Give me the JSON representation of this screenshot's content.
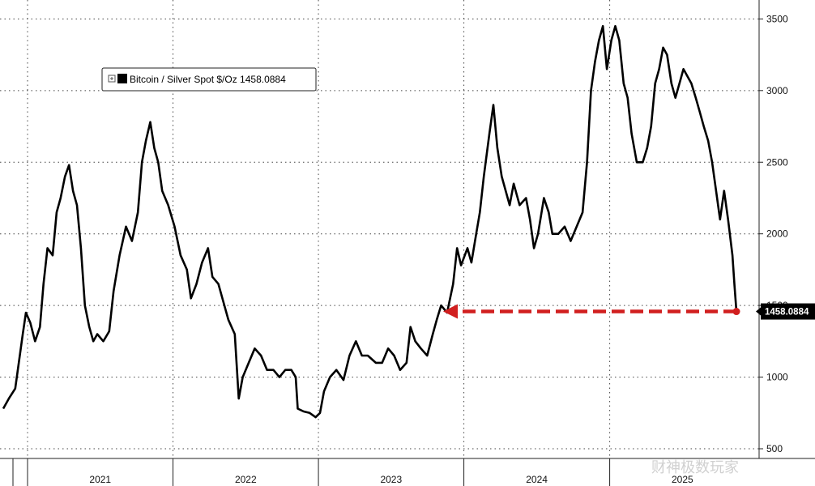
{
  "colors": {
    "line": "#000000",
    "accent": "#d11f1f",
    "last_bg": "#000000"
  },
  "watermark": "财神极数玩家",
  "chart_data": {
    "type": "line",
    "title": "",
    "xlabel": "",
    "ylabel": "",
    "ylim": [
      500,
      3700
    ],
    "y_ticks": [
      500,
      1000,
      1500,
      2000,
      2500,
      3000,
      3500
    ],
    "year_labels": [
      "2021",
      "2022",
      "2023",
      "2024",
      "2025"
    ],
    "x_range": [
      "2020-11-01",
      "2025-11-15"
    ],
    "year_bounds": [
      "2021-01-01",
      "2022-01-01",
      "2023-01-01",
      "2024-01-01",
      "2025-01-01"
    ],
    "legend": {
      "label": "Bitcoin / Silver Spot $/Oz",
      "value": "1458.0884",
      "placement": "top-left"
    },
    "last_value_label": "1458.0884",
    "series": [
      {
        "name": "Bitcoin / Silver Spot $/Oz",
        "points": [
          [
            "2020-11-01",
            780
          ],
          [
            "2020-11-15",
            850
          ],
          [
            "2020-12-01",
            920
          ],
          [
            "2020-12-10",
            1100
          ],
          [
            "2020-12-20",
            1300
          ],
          [
            "2020-12-28",
            1450
          ],
          [
            "2021-01-08",
            1380
          ],
          [
            "2021-01-20",
            1250
          ],
          [
            "2021-02-01",
            1350
          ],
          [
            "2021-02-10",
            1650
          ],
          [
            "2021-02-20",
            1900
          ],
          [
            "2021-03-05",
            1850
          ],
          [
            "2021-03-15",
            2150
          ],
          [
            "2021-03-25",
            2250
          ],
          [
            "2021-04-05",
            2400
          ],
          [
            "2021-04-15",
            2480
          ],
          [
            "2021-04-25",
            2300
          ],
          [
            "2021-05-05",
            2200
          ],
          [
            "2021-05-15",
            1900
          ],
          [
            "2021-05-25",
            1500
          ],
          [
            "2021-06-05",
            1350
          ],
          [
            "2021-06-15",
            1250
          ],
          [
            "2021-06-25",
            1300
          ],
          [
            "2021-07-10",
            1250
          ],
          [
            "2021-07-25",
            1320
          ],
          [
            "2021-08-05",
            1600
          ],
          [
            "2021-08-20",
            1850
          ],
          [
            "2021-09-05",
            2050
          ],
          [
            "2021-09-20",
            1950
          ],
          [
            "2021-10-05",
            2150
          ],
          [
            "2021-10-15",
            2500
          ],
          [
            "2021-10-25",
            2650
          ],
          [
            "2021-11-05",
            2780
          ],
          [
            "2021-11-15",
            2600
          ],
          [
            "2021-11-25",
            2500
          ],
          [
            "2021-12-05",
            2300
          ],
          [
            "2021-12-20",
            2200
          ],
          [
            "2022-01-05",
            2050
          ],
          [
            "2022-01-20",
            1850
          ],
          [
            "2022-02-05",
            1750
          ],
          [
            "2022-02-15",
            1550
          ],
          [
            "2022-03-01",
            1650
          ],
          [
            "2022-03-15",
            1800
          ],
          [
            "2022-03-30",
            1900
          ],
          [
            "2022-04-10",
            1700
          ],
          [
            "2022-04-25",
            1650
          ],
          [
            "2022-05-05",
            1550
          ],
          [
            "2022-05-20",
            1400
          ],
          [
            "2022-06-05",
            1300
          ],
          [
            "2022-06-15",
            850
          ],
          [
            "2022-06-25",
            1000
          ],
          [
            "2022-07-10",
            1100
          ],
          [
            "2022-07-25",
            1200
          ],
          [
            "2022-08-10",
            1150
          ],
          [
            "2022-08-25",
            1050
          ],
          [
            "2022-09-10",
            1050
          ],
          [
            "2022-09-25",
            1000
          ],
          [
            "2022-10-10",
            1050
          ],
          [
            "2022-10-25",
            1050
          ],
          [
            "2022-11-05",
            1000
          ],
          [
            "2022-11-10",
            780
          ],
          [
            "2022-11-25",
            760
          ],
          [
            "2022-12-10",
            750
          ],
          [
            "2022-12-25",
            720
          ],
          [
            "2023-01-05",
            750
          ],
          [
            "2023-01-15",
            900
          ],
          [
            "2023-01-30",
            1000
          ],
          [
            "2023-02-15",
            1050
          ],
          [
            "2023-03-05",
            980
          ],
          [
            "2023-03-20",
            1150
          ],
          [
            "2023-04-05",
            1250
          ],
          [
            "2023-04-20",
            1150
          ],
          [
            "2023-05-05",
            1150
          ],
          [
            "2023-05-25",
            1100
          ],
          [
            "2023-06-10",
            1100
          ],
          [
            "2023-06-25",
            1200
          ],
          [
            "2023-07-10",
            1150
          ],
          [
            "2023-07-25",
            1050
          ],
          [
            "2023-08-10",
            1100
          ],
          [
            "2023-08-20",
            1350
          ],
          [
            "2023-09-01",
            1250
          ],
          [
            "2023-09-15",
            1200
          ],
          [
            "2023-10-01",
            1150
          ],
          [
            "2023-10-15",
            1300
          ],
          [
            "2023-10-25",
            1400
          ],
          [
            "2023-11-05",
            1500
          ],
          [
            "2023-11-20",
            1450
          ],
          [
            "2023-12-05",
            1650
          ],
          [
            "2023-12-15",
            1900
          ],
          [
            "2023-12-25",
            1780
          ],
          [
            "2024-01-10",
            1900
          ],
          [
            "2024-01-20",
            1800
          ],
          [
            "2024-02-01",
            2000
          ],
          [
            "2024-02-10",
            2150
          ],
          [
            "2024-02-20",
            2400
          ],
          [
            "2024-03-05",
            2700
          ],
          [
            "2024-03-15",
            2900
          ],
          [
            "2024-03-25",
            2600
          ],
          [
            "2024-04-05",
            2400
          ],
          [
            "2024-04-15",
            2300
          ],
          [
            "2024-04-25",
            2200
          ],
          [
            "2024-05-05",
            2350
          ],
          [
            "2024-05-20",
            2200
          ],
          [
            "2024-06-05",
            2250
          ],
          [
            "2024-06-15",
            2100
          ],
          [
            "2024-06-25",
            1900
          ],
          [
            "2024-07-05",
            2000
          ],
          [
            "2024-07-20",
            2250
          ],
          [
            "2024-08-01",
            2150
          ],
          [
            "2024-08-10",
            2000
          ],
          [
            "2024-08-25",
            2000
          ],
          [
            "2024-09-10",
            2050
          ],
          [
            "2024-09-25",
            1950
          ],
          [
            "2024-10-10",
            2050
          ],
          [
            "2024-10-25",
            2150
          ],
          [
            "2024-11-05",
            2500
          ],
          [
            "2024-11-15",
            3000
          ],
          [
            "2024-11-25",
            3200
          ],
          [
            "2024-12-05",
            3350
          ],
          [
            "2024-12-15",
            3450
          ],
          [
            "2024-12-25",
            3150
          ],
          [
            "2025-01-05",
            3350
          ],
          [
            "2025-01-15",
            3450
          ],
          [
            "2025-01-25",
            3350
          ],
          [
            "2025-02-05",
            3050
          ],
          [
            "2025-02-15",
            2950
          ],
          [
            "2025-02-25",
            2700
          ],
          [
            "2025-03-10",
            2500
          ],
          [
            "2025-03-25",
            2500
          ],
          [
            "2025-04-05",
            2600
          ],
          [
            "2025-04-15",
            2750
          ],
          [
            "2025-04-25",
            3050
          ],
          [
            "2025-05-05",
            3150
          ],
          [
            "2025-05-15",
            3300
          ],
          [
            "2025-05-25",
            3250
          ],
          [
            "2025-06-05",
            3050
          ],
          [
            "2025-06-15",
            2950
          ],
          [
            "2025-06-25",
            3050
          ],
          [
            "2025-07-05",
            3150
          ],
          [
            "2025-07-15",
            3100
          ],
          [
            "2025-07-25",
            3050
          ],
          [
            "2025-08-05",
            2950
          ],
          [
            "2025-08-15",
            2850
          ],
          [
            "2025-08-25",
            2750
          ],
          [
            "2025-09-05",
            2650
          ],
          [
            "2025-09-15",
            2500
          ],
          [
            "2025-09-25",
            2300
          ],
          [
            "2025-10-05",
            2100
          ],
          [
            "2025-10-15",
            2300
          ],
          [
            "2025-10-25",
            2100
          ],
          [
            "2025-11-05",
            1850
          ],
          [
            "2025-11-10",
            1650
          ],
          [
            "2025-11-15",
            1458.0884
          ]
        ]
      }
    ],
    "annotation": {
      "type": "dashed-arrow",
      "color": "#d11f1f",
      "y": 1458.0884,
      "from": "2025-11-15",
      "to": "2023-11-10"
    }
  }
}
